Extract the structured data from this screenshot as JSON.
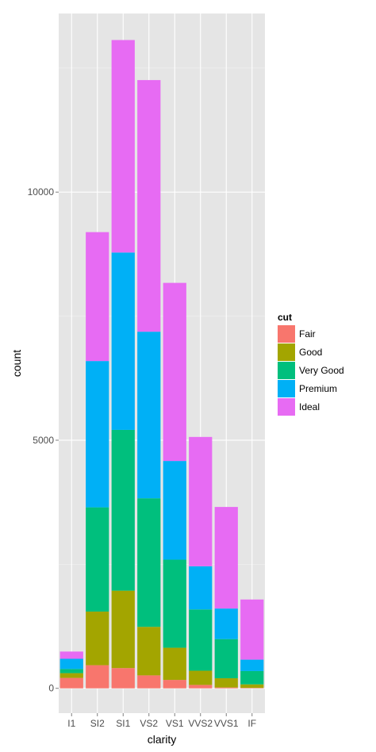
{
  "chart_data": {
    "type": "bar",
    "stacked": true,
    "title": "",
    "xlabel": "clarity",
    "ylabel": "count",
    "categories": [
      "I1",
      "SI2",
      "SI1",
      "VS2",
      "VS1",
      "VVS2",
      "VVS1",
      "IF"
    ],
    "ylim": [
      -500,
      13600
    ],
    "yticks": [
      0,
      5000,
      10000
    ],
    "ytick_labels": [
      "0",
      "5000",
      "10000"
    ],
    "grid": true,
    "legend": {
      "title": "cut",
      "position": "right"
    },
    "series": [
      {
        "name": "Fair",
        "color": "#F8766D",
        "values": [
          210,
          466,
          408,
          261,
          170,
          69,
          17,
          9
        ]
      },
      {
        "name": "Good",
        "color": "#A3A500",
        "values": [
          96,
          1081,
          1560,
          978,
          648,
          286,
          186,
          71
        ]
      },
      {
        "name": "Very Good",
        "color": "#00BF7D",
        "values": [
          84,
          2100,
          3240,
          2591,
          1775,
          1235,
          789,
          268
        ]
      },
      {
        "name": "Premium",
        "color": "#00B0F6",
        "values": [
          205,
          2949,
          3575,
          3357,
          1989,
          870,
          616,
          230
        ]
      },
      {
        "name": "Ideal",
        "color": "#E76BF3",
        "values": [
          146,
          2598,
          4282,
          5071,
          3589,
          2606,
          2047,
          1212
        ]
      }
    ]
  }
}
